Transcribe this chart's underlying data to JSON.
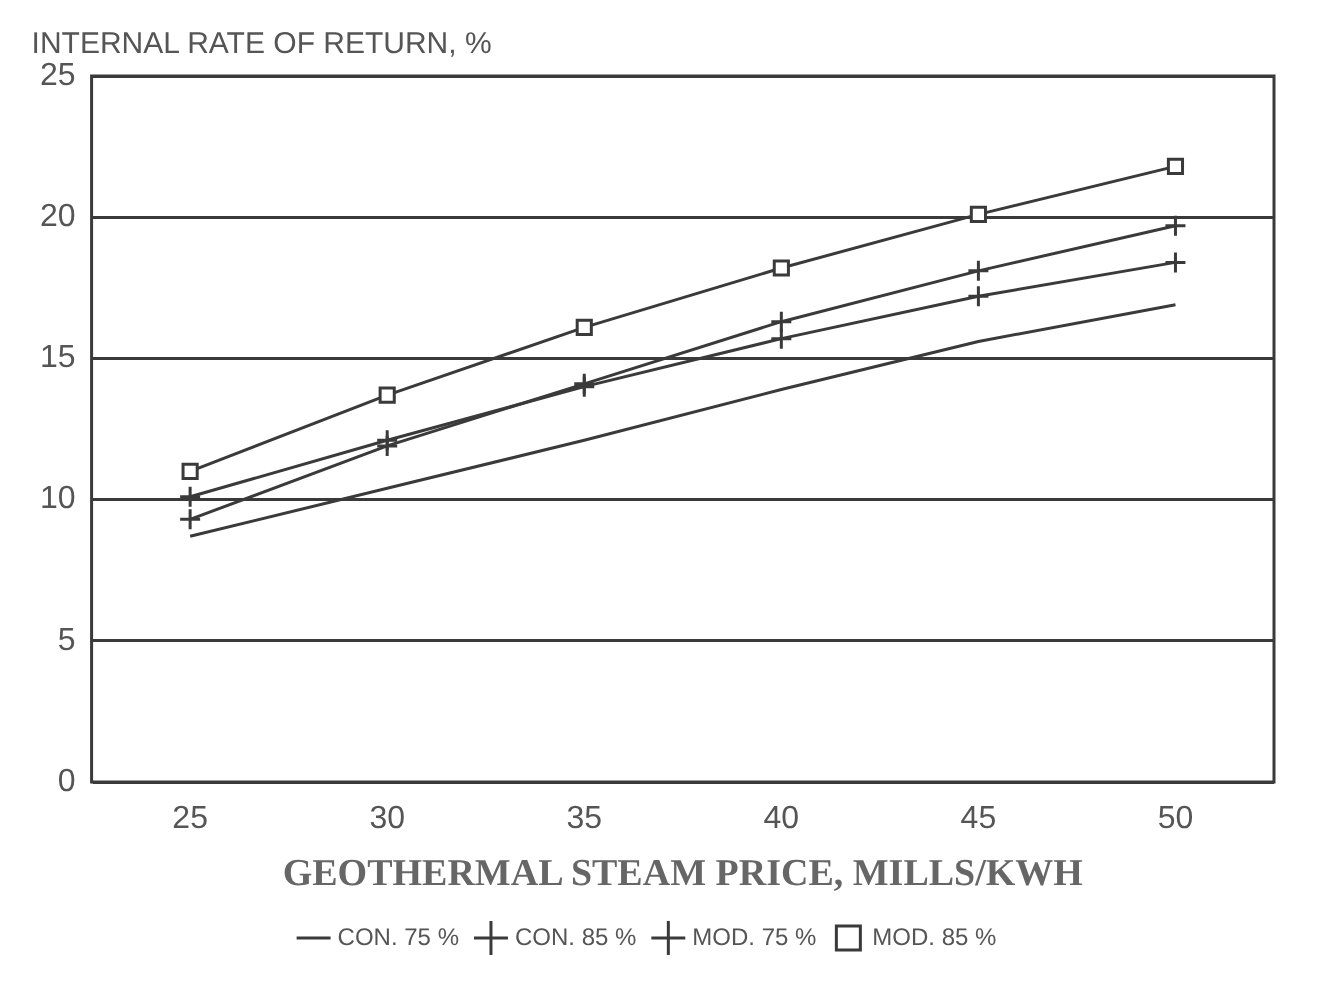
{
  "chart_data": {
    "type": "line",
    "ylabel": "INTERNAL RATE OF RETURN, %",
    "xlabel": "GEOTHERMAL STEAM PRICE, MILLS/KWH",
    "categories": [
      "25",
      "30",
      "35",
      "40",
      "45",
      "50"
    ],
    "series": [
      {
        "name": "CON. 75 %",
        "color": "#3a3a3a",
        "marker": "none",
        "values": [
          8.7,
          10.4,
          12.1,
          13.9,
          15.6,
          16.9
        ]
      },
      {
        "name": "CON. 85 %",
        "color": "#3a3a3a",
        "marker": "cross",
        "values": [
          10.1,
          12.1,
          14.0,
          15.7,
          17.2,
          18.4
        ]
      },
      {
        "name": "MOD. 75 %",
        "color": "#3a3a3a",
        "marker": "cross",
        "values": [
          9.3,
          11.9,
          14.1,
          16.3,
          18.1,
          19.7
        ]
      },
      {
        "name": "MOD. 85 %",
        "color": "#3a3a3a",
        "marker": "square",
        "values": [
          11.0,
          13.7,
          16.1,
          18.2,
          20.1,
          21.8
        ]
      }
    ],
    "ylim": [
      0,
      25
    ],
    "yticks": [
      0,
      5,
      10,
      15,
      20,
      25
    ],
    "grid": "y",
    "legend": "bottom",
    "line_style": "solid"
  }
}
